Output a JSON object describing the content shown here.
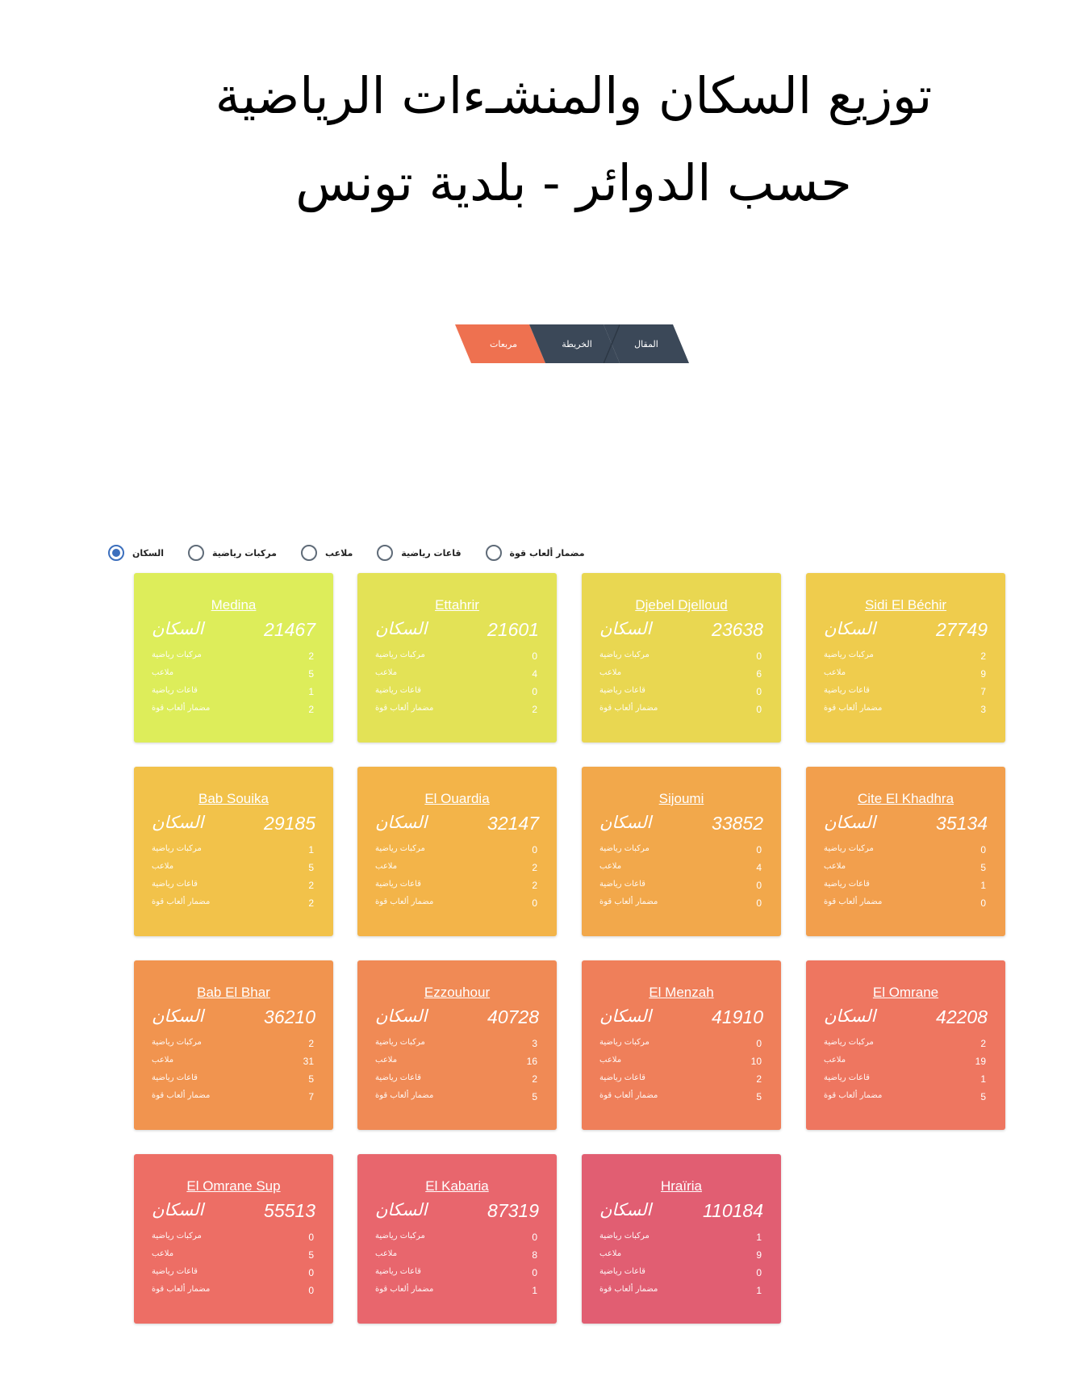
{
  "page": {
    "title_line1": "توزيع السكان والمنشـءات الرياضية",
    "title_line2": "حسب الدوائر - بلدية تونس"
  },
  "nav": {
    "squares": "مربعات",
    "map": "الخريطة",
    "article": "المقال"
  },
  "radios": [
    {
      "label": "السكان",
      "checked": true
    },
    {
      "label": "مركبات رياضية",
      "checked": false
    },
    {
      "label": "ملاعب",
      "checked": false
    },
    {
      "label": "قاعات رياضية",
      "checked": false
    },
    {
      "label": "مضمار ألعاب قوة",
      "checked": false
    }
  ],
  "labels": {
    "population": "السكان",
    "complexes": "مركبات رياضية",
    "fields": "ملاعب",
    "halls": "قاعات رياضية",
    "tracks": "مضمار ألعاب قوة"
  },
  "districts": [
    {
      "name": "Medina",
      "population": "21467",
      "complexes": "2",
      "fields": "5",
      "halls": "1",
      "tracks": "2",
      "color": "#dded5a"
    },
    {
      "name": "Ettahrir",
      "population": "21601",
      "complexes": "0",
      "fields": "4",
      "halls": "0",
      "tracks": "2",
      "color": "#e3e256"
    },
    {
      "name": "Djebel Djelloud",
      "population": "23638",
      "complexes": "0",
      "fields": "6",
      "halls": "0",
      "tracks": "0",
      "color": "#e9d751"
    },
    {
      "name": "Sidi El Béchir",
      "population": "27749",
      "complexes": "2",
      "fields": "9",
      "halls": "7",
      "tracks": "3",
      "color": "#efcc4d"
    },
    {
      "name": "Bab Souika",
      "population": "29185",
      "complexes": "1",
      "fields": "5",
      "halls": "2",
      "tracks": "2",
      "color": "#f2c24a"
    },
    {
      "name": "El Ouardia",
      "population": "32147",
      "complexes": "0",
      "fields": "2",
      "halls": "2",
      "tracks": "0",
      "color": "#f3b449"
    },
    {
      "name": "Sijoumi",
      "population": "33852",
      "complexes": "0",
      "fields": "4",
      "halls": "0",
      "tracks": "0",
      "color": "#f2a84b"
    },
    {
      "name": "Cite El Khadhra",
      "population": "35134",
      "complexes": "0",
      "fields": "5",
      "halls": "1",
      "tracks": "0",
      "color": "#f29f4d"
    },
    {
      "name": "Bab El Bhar",
      "population": "36210",
      "complexes": "2",
      "fields": "31",
      "halls": "5",
      "tracks": "7",
      "color": "#f1944f"
    },
    {
      "name": "Ezzouhour",
      "population": "40728",
      "complexes": "3",
      "fields": "16",
      "halls": "2",
      "tracks": "5",
      "color": "#f08a55"
    },
    {
      "name": "El Menzah",
      "population": "41910",
      "complexes": "0",
      "fields": "10",
      "halls": "2",
      "tracks": "5",
      "color": "#ef7f5a"
    },
    {
      "name": "El Omrane",
      "population": "42208",
      "complexes": "2",
      "fields": "19",
      "halls": "1",
      "tracks": "5",
      "color": "#ee7660"
    },
    {
      "name": "El Omrane Sup",
      "population": "55513",
      "complexes": "0",
      "fields": "5",
      "halls": "0",
      "tracks": "0",
      "color": "#ed6e65"
    },
    {
      "name": "El Kabaria",
      "population": "87319",
      "complexes": "0",
      "fields": "8",
      "halls": "0",
      "tracks": "1",
      "color": "#e8666d"
    },
    {
      "name": "Hraïria",
      "population": "110184",
      "complexes": "1",
      "fields": "9",
      "halls": "0",
      "tracks": "1",
      "color": "#e15e72"
    }
  ]
}
